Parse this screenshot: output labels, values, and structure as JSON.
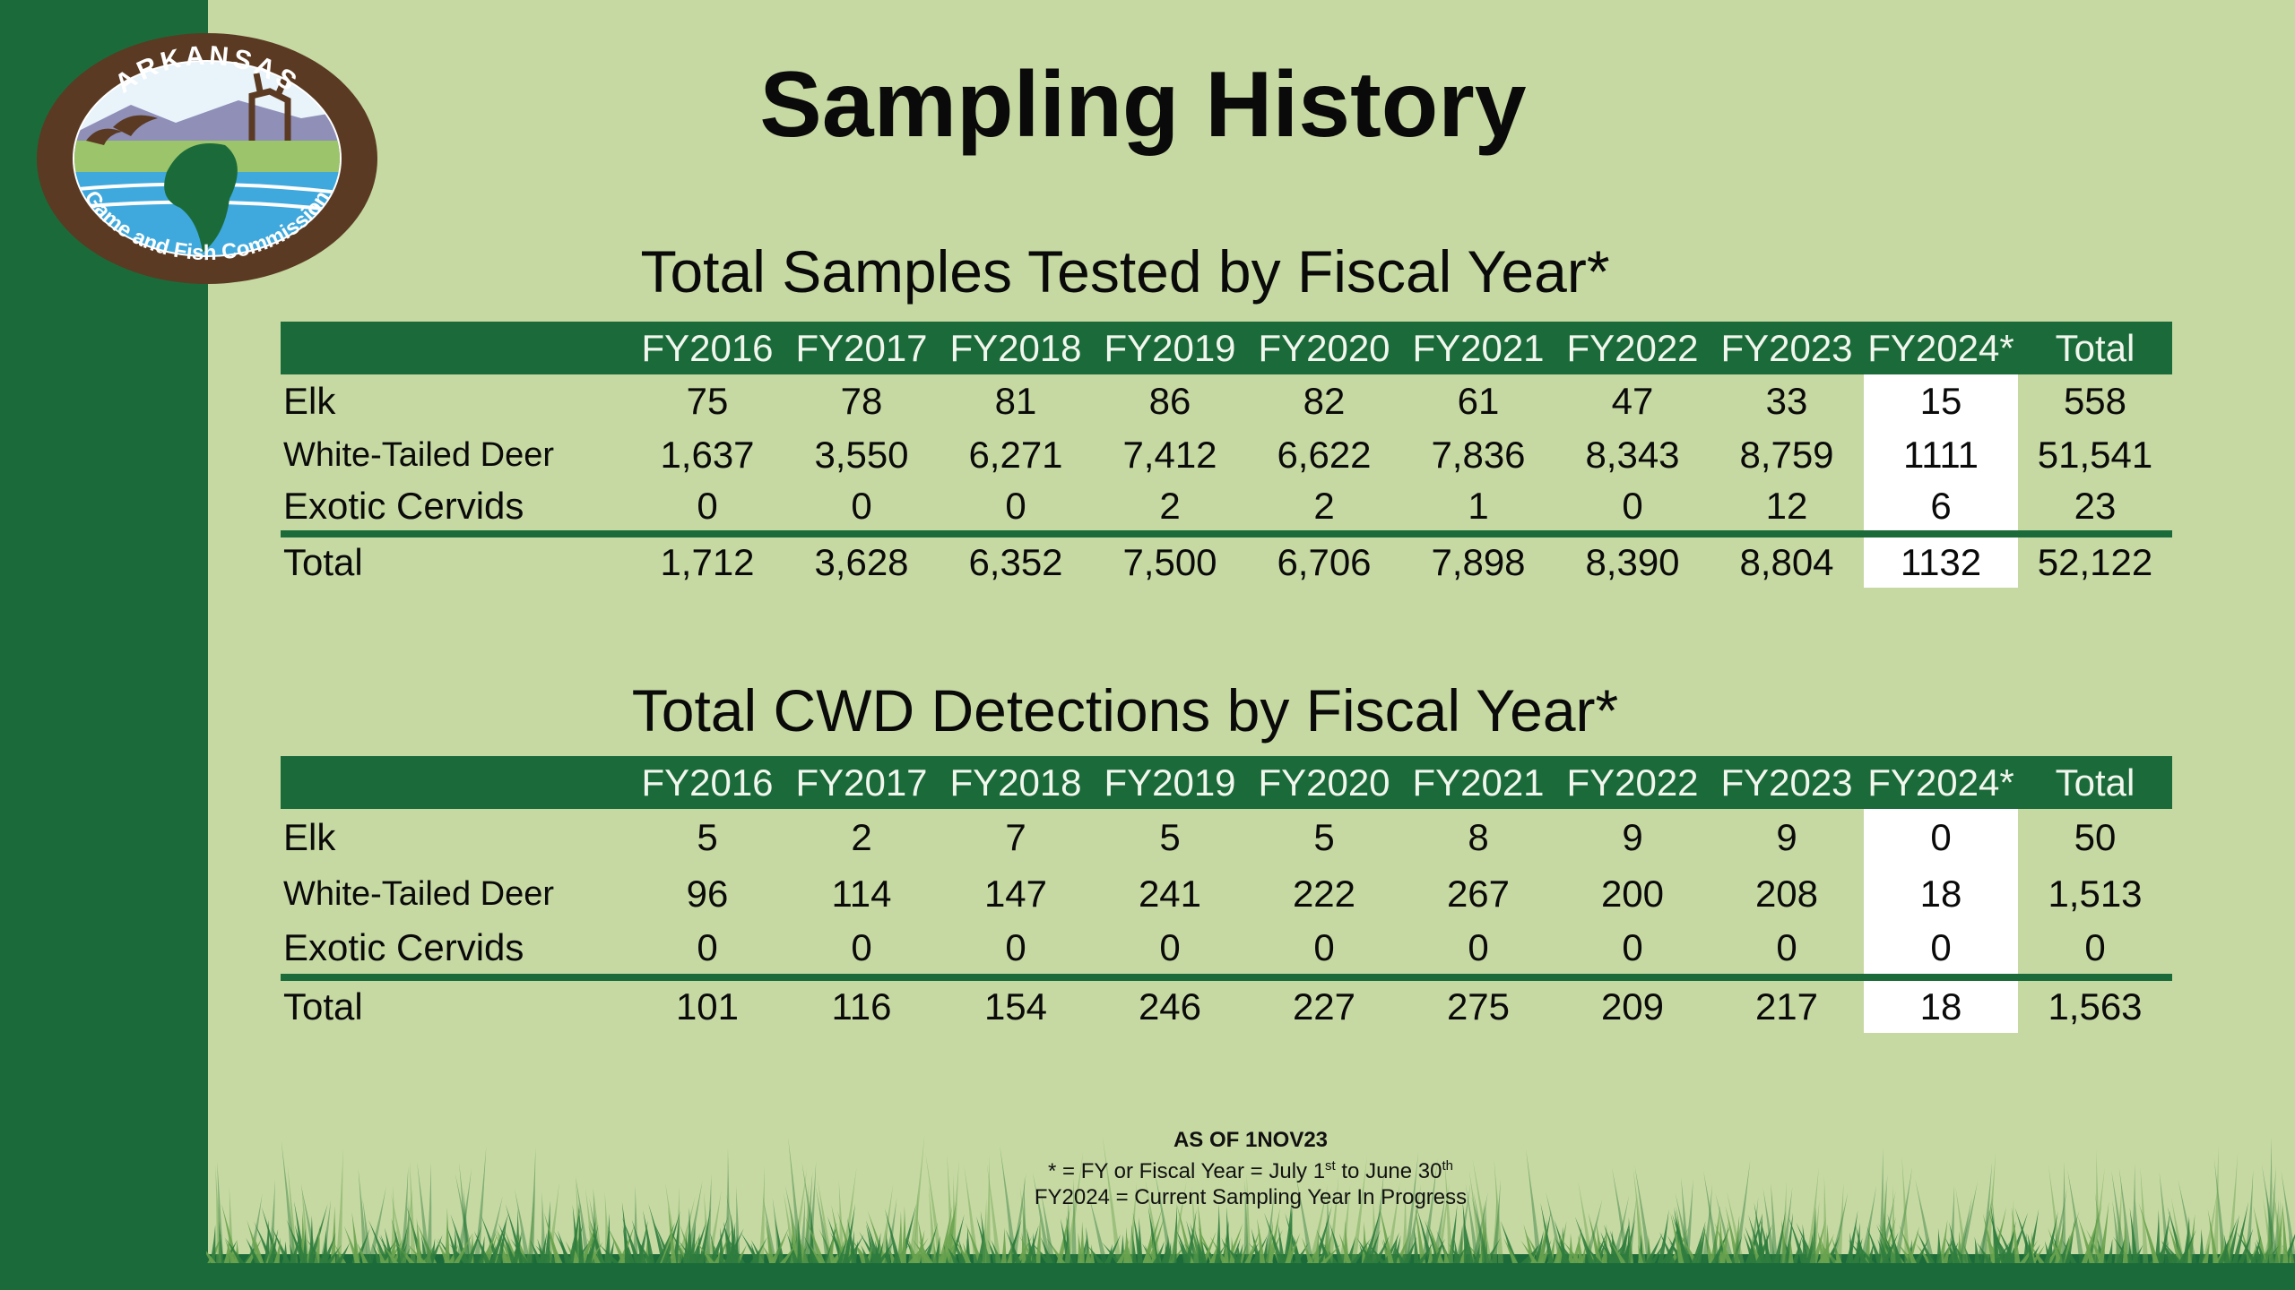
{
  "logo": {
    "top_text": "ARKANSAS",
    "bottom_text": "Game and Fish Commission"
  },
  "title": "Sampling History",
  "colors": {
    "brand_green": "#1b6b3a",
    "background": "#c6d9a3",
    "highlight": "#ffffff",
    "logo_brown": "#5a3a22"
  },
  "tables": [
    {
      "title": "Total Samples Tested by Fiscal Year*",
      "columns": [
        "FY2016",
        "FY2017",
        "FY2018",
        "FY2019",
        "FY2020",
        "FY2021",
        "FY2022",
        "FY2023",
        "FY2024*",
        "Total"
      ],
      "rows": [
        {
          "label": "Elk",
          "values": [
            "75",
            "78",
            "81",
            "86",
            "82",
            "61",
            "47",
            "33",
            "15",
            "558"
          ]
        },
        {
          "label": "White-Tailed Deer",
          "values": [
            "1,637",
            "3,550",
            "6,271",
            "7,412",
            "6,622",
            "7,836",
            "8,343",
            "8,759",
            "1111",
            "51,541"
          ]
        },
        {
          "label": "Exotic Cervids",
          "values": [
            "0",
            "0",
            "0",
            "2",
            "2",
            "1",
            "0",
            "12",
            "6",
            "23"
          ]
        },
        {
          "label": "Total",
          "values": [
            "1,712",
            "3,628",
            "6,352",
            "7,500",
            "6,706",
            "7,898",
            "8,390",
            "8,804",
            "1132",
            "52,122"
          ]
        }
      ]
    },
    {
      "title": "Total CWD Detections by Fiscal Year*",
      "columns": [
        "FY2016",
        "FY2017",
        "FY2018",
        "FY2019",
        "FY2020",
        "FY2021",
        "FY2022",
        "FY2023",
        "FY2024*",
        "Total"
      ],
      "rows": [
        {
          "label": "Elk",
          "values": [
            "5",
            "2",
            "7",
            "5",
            "5",
            "8",
            "9",
            "9",
            "0",
            "50"
          ]
        },
        {
          "label": "White-Tailed Deer",
          "values": [
            "96",
            "114",
            "147",
            "241",
            "222",
            "267",
            "200",
            "208",
            "18",
            "1,513"
          ]
        },
        {
          "label": "Exotic Cervids",
          "values": [
            "0",
            "0",
            "0",
            "0",
            "0",
            "0",
            "0",
            "0",
            "0",
            "0"
          ]
        },
        {
          "label": "Total",
          "values": [
            "101",
            "116",
            "154",
            "246",
            "227",
            "275",
            "209",
            "217",
            "18",
            "1,563"
          ]
        }
      ]
    }
  ],
  "footer": {
    "as_of": "AS OF 1NOV23",
    "line2_a": "* = FY or Fiscal Year = July 1",
    "line2_sup1": "st",
    "line2_b": " to June 30",
    "line2_sup2": "th",
    "line3": "FY2024 = Current Sampling Year In Progress"
  }
}
